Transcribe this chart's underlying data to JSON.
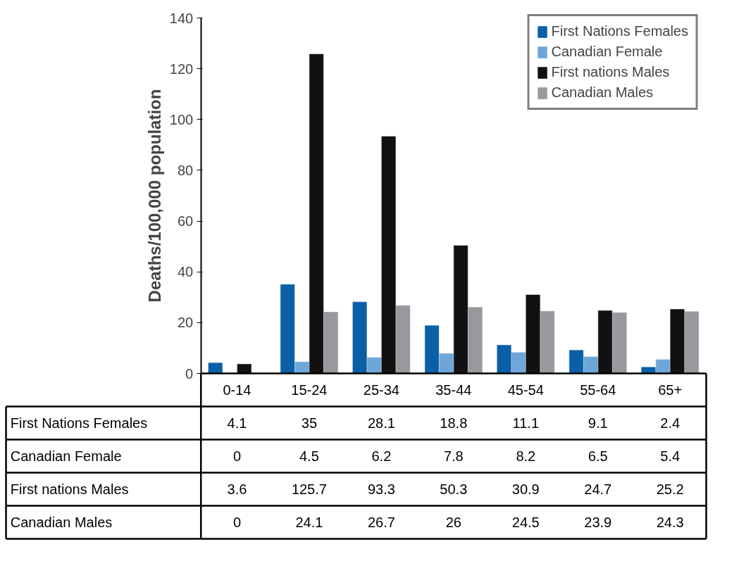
{
  "chart_data": {
    "type": "bar",
    "ylabel": "Deaths/100,000 population",
    "categories": [
      "0-14",
      "15-24",
      "25-34",
      "35-44",
      "45-54",
      "55-64",
      "65+"
    ],
    "series": [
      {
        "name": "First Nations Females",
        "color": "#0a5fa6",
        "values": [
          4.1,
          35,
          28.1,
          18.8,
          11.1,
          9.1,
          2.4
        ]
      },
      {
        "name": "Canadian Female",
        "color": "#6ea6d8",
        "values": [
          0,
          4.5,
          6.2,
          7.8,
          8.2,
          6.5,
          5.4
        ]
      },
      {
        "name": "First nations Males",
        "color": "#111111",
        "values": [
          3.6,
          125.7,
          93.3,
          50.3,
          30.9,
          24.7,
          25.2
        ]
      },
      {
        "name": "Canadian Males",
        "color": "#98999e",
        "values": [
          0,
          24.1,
          26.7,
          26,
          24.5,
          23.9,
          24.3
        ]
      }
    ],
    "ylim": [
      0,
      140
    ],
    "yticks": [
      0,
      20,
      40,
      60,
      80,
      100,
      120,
      140
    ],
    "grid": false,
    "legend": "top right",
    "data_labels": true
  }
}
